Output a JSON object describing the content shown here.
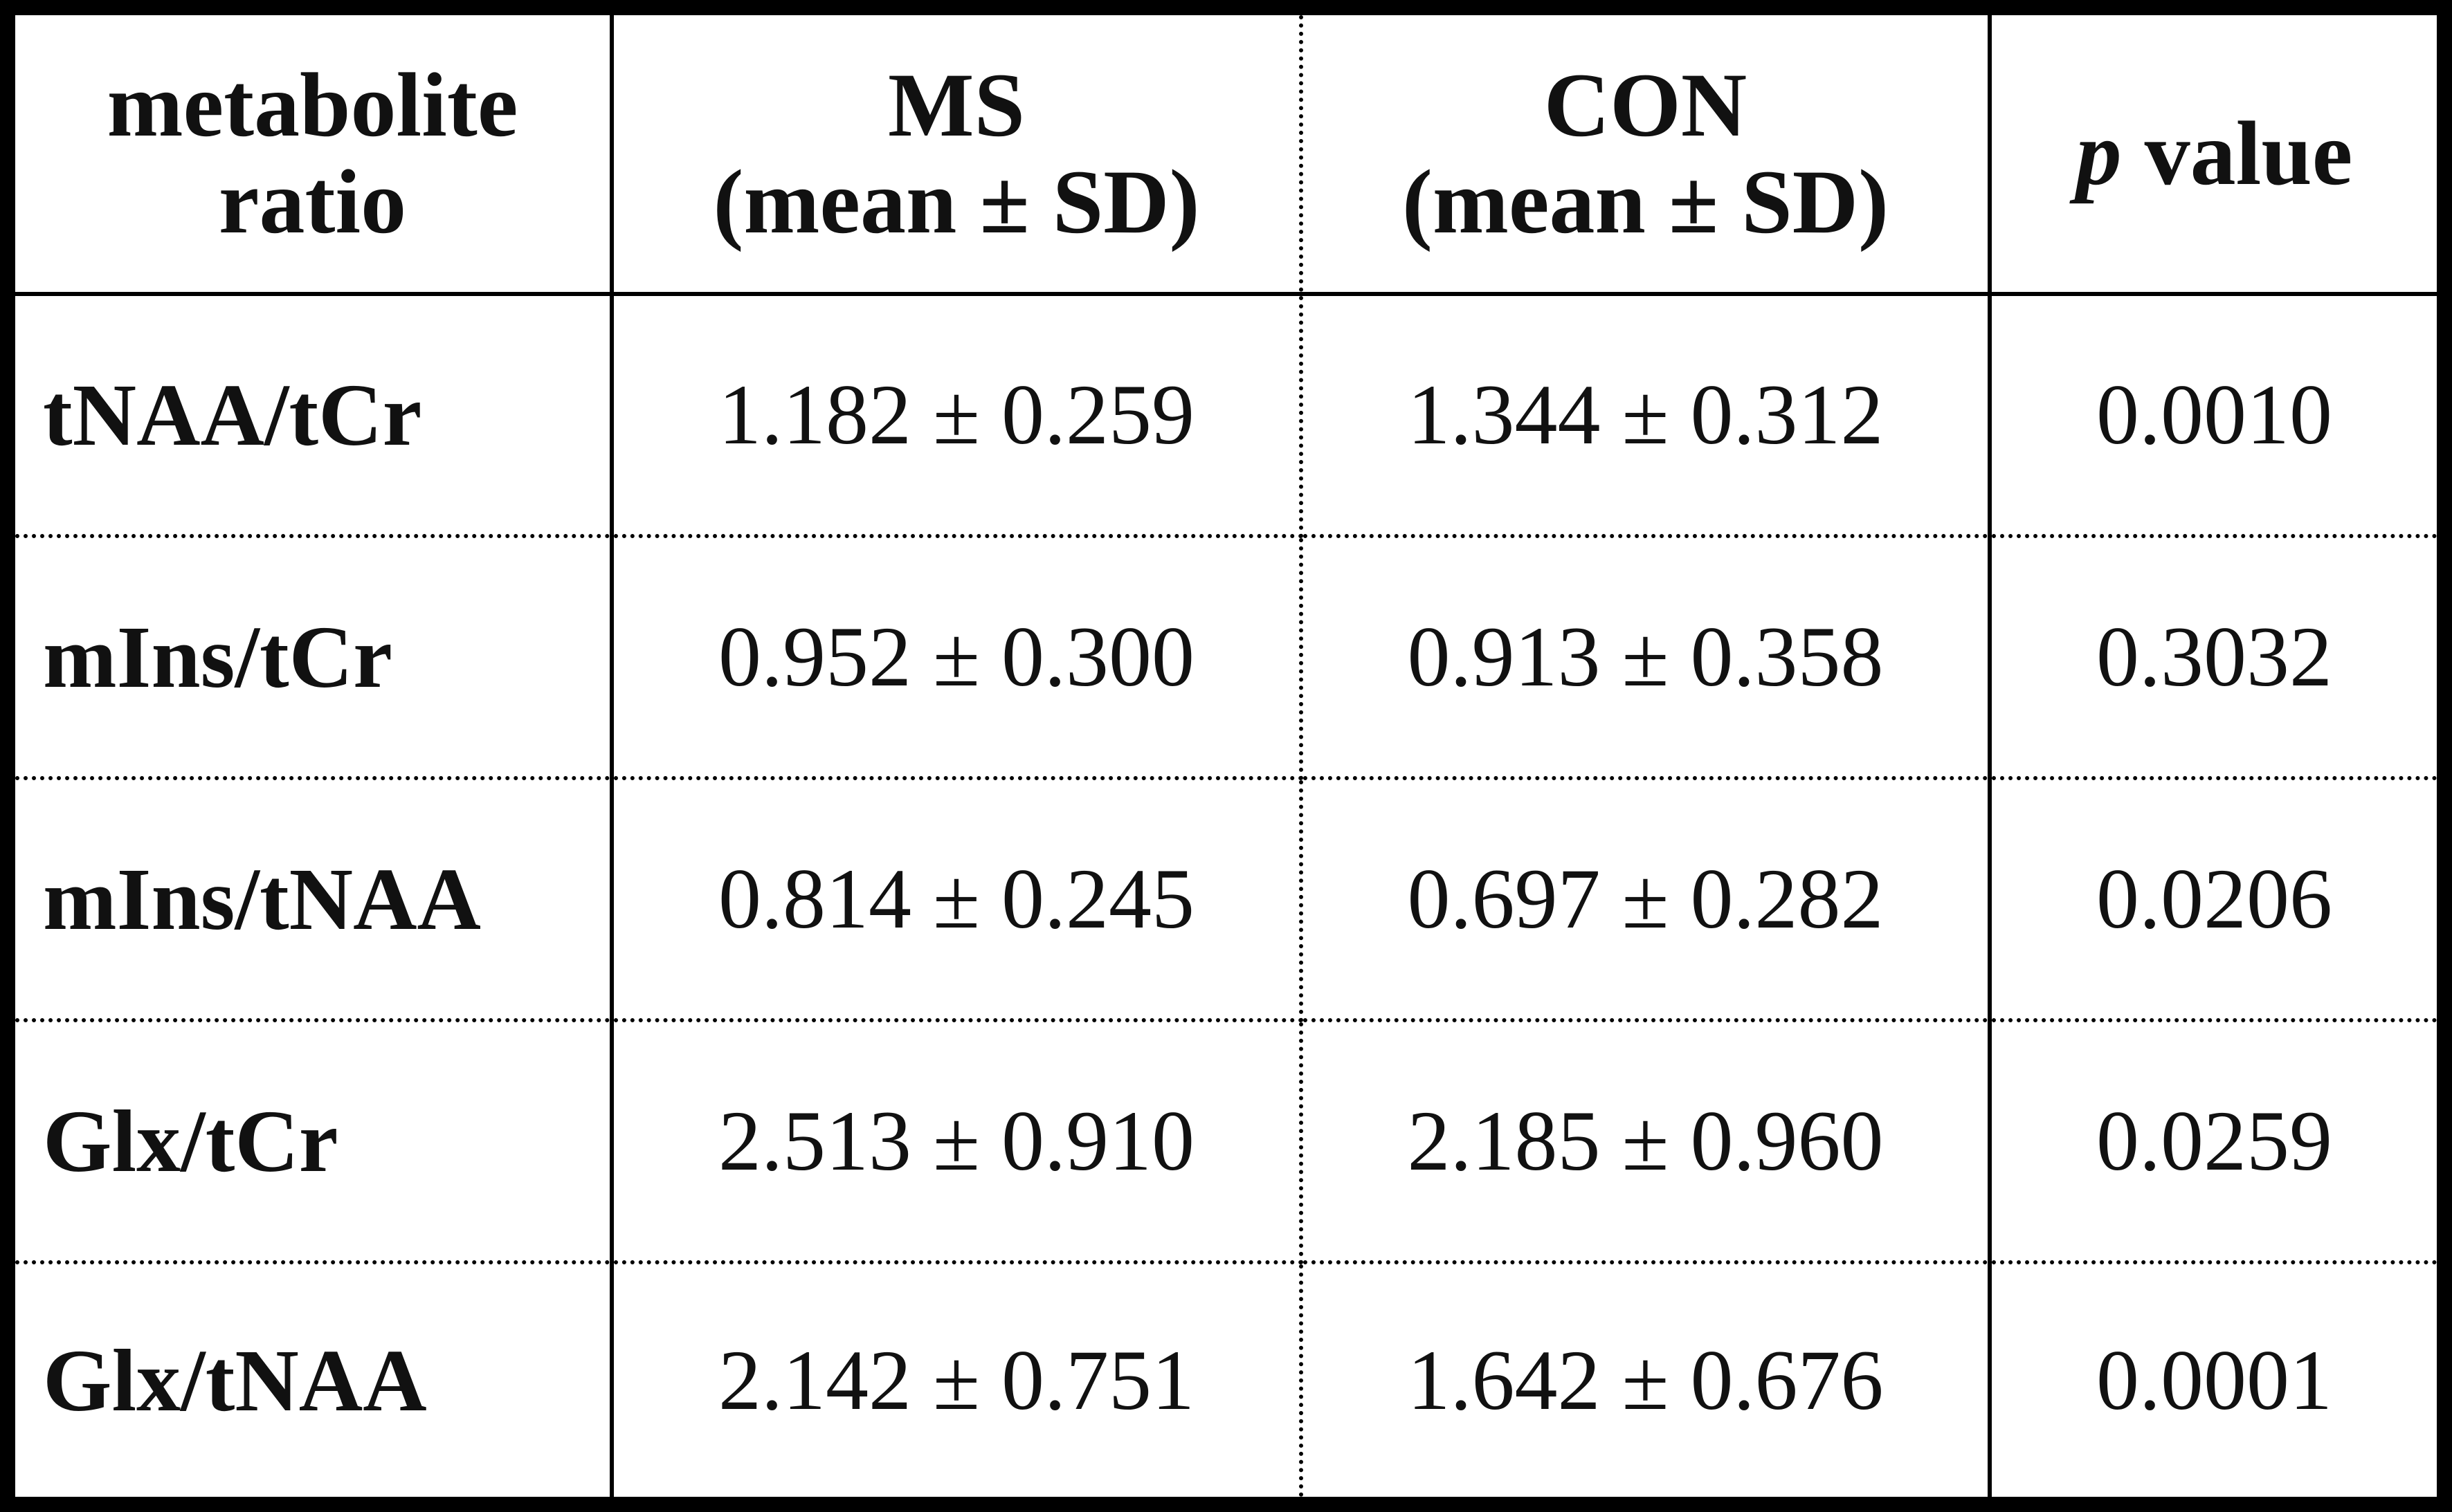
{
  "table": {
    "header": [
      [
        "metabolite",
        "ratio"
      ],
      [
        "MS",
        "(mean ± SD)"
      ],
      [
        "CON",
        "(mean ± SD)"
      ],
      {
        "italic": "p",
        "text": "value"
      }
    ],
    "rows": [
      [
        "tNAA/tCr",
        "1.182 ± 0.259",
        "1.344 ± 0.312",
        "0.0010"
      ],
      [
        "mIns/tCr",
        "0.952 ± 0.300",
        "0.913 ± 0.358",
        "0.3032"
      ],
      [
        "mIns/tNAA",
        "0.814 ± 0.245",
        "0.697 ± 0.282",
        "0.0206"
      ],
      [
        "Glx/tCr",
        "2.513 ± 0.910",
        "2.185 ± 0.960",
        "0.0259"
      ],
      [
        "Glx/tNAA",
        "2.142 ± 0.751",
        "1.642 ± 0.676",
        "0.0001"
      ]
    ]
  }
}
